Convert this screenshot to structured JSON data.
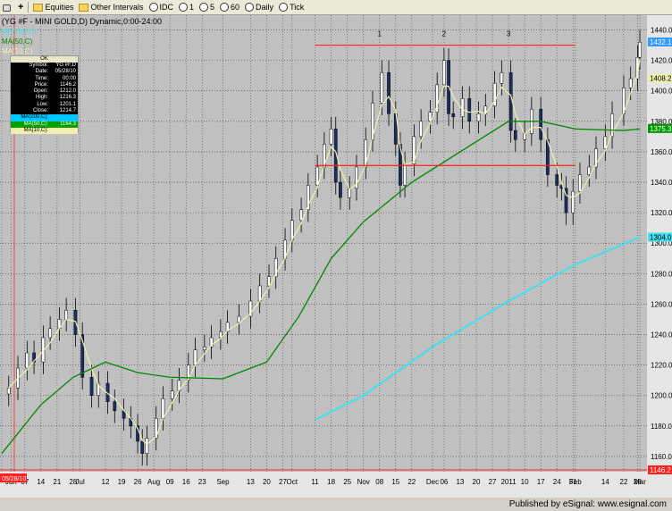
{
  "toolbar": {
    "equities": "Equities",
    "other_intervals": "Other Intervals",
    "idc": "IDC",
    "i1": "1",
    "i5": "5",
    "i60": "60",
    "daily": "Daily",
    "tick": "Tick"
  },
  "footer": {
    "text": "Published by eSignal: www.esignal.com"
  },
  "legend": {
    "header": "OK",
    "rows": [
      {
        "label": "Symbol:",
        "value": "YG #F,D"
      },
      {
        "label": "Date:",
        "value": "05/28/10"
      },
      {
        "label": "Time:",
        "value": "00:00"
      },
      {
        "label": "Price:",
        "value": "1146.2"
      },
      {
        "label": "Open:",
        "value": "1212.0"
      },
      {
        "label": "High:",
        "value": "1216.3"
      },
      {
        "label": "Low:",
        "value": "1201.1"
      },
      {
        "label": "Close:",
        "value": "1214.7"
      },
      {
        "label": "MA(200,C):",
        "value": ""
      },
      {
        "label": "MA(50,C):",
        "value": "1164.3"
      },
      {
        "label": "MA(10,C):",
        "value": ""
      }
    ]
  },
  "colors": {
    "background": "#c0c0c0",
    "candle": "#1a2f60",
    "ma200": "#40e0f0",
    "ma50": "#008800",
    "ma10": "#f0f0b0",
    "resistance": "#ff2020",
    "current_price_badge": "#3399ff"
  },
  "chart_data": {
    "type": "candlestick",
    "title": "(YG #F - MINI GOLD,D) Dynamic,0:00-24:00",
    "series_labels": [
      "MA(200,C)",
      "MA(50,C)",
      "MA(10,C)"
    ],
    "ylim": [
      1150,
      1445
    ],
    "yticks": [
      1160,
      1180,
      1200,
      1220,
      1240,
      1260,
      1280,
      1300,
      1320,
      1340,
      1360,
      1380,
      1400,
      1420,
      1440
    ],
    "xlim": [
      "2010-05-28",
      "2011-03-01"
    ],
    "xticks": [
      {
        "date": "2010-05-28",
        "label": "05/28/10"
      },
      {
        "date": "2010-06-01",
        "label": "Jun"
      },
      {
        "date": "2010-06-07",
        "label": "07"
      },
      {
        "date": "2010-06-14",
        "label": "14"
      },
      {
        "date": "2010-06-21",
        "label": "21"
      },
      {
        "date": "2010-06-28",
        "label": "28"
      },
      {
        "date": "2010-07-01",
        "label": "Jul"
      },
      {
        "date": "2010-07-12",
        "label": "12"
      },
      {
        "date": "2010-07-19",
        "label": "19"
      },
      {
        "date": "2010-07-26",
        "label": "26"
      },
      {
        "date": "2010-08-02",
        "label": "Aug"
      },
      {
        "date": "2010-08-09",
        "label": "09"
      },
      {
        "date": "2010-08-16",
        "label": "16"
      },
      {
        "date": "2010-08-23",
        "label": "23"
      },
      {
        "date": "2010-09-01",
        "label": "Sep"
      },
      {
        "date": "2010-09-13",
        "label": "13"
      },
      {
        "date": "2010-09-20",
        "label": "20"
      },
      {
        "date": "2010-09-27",
        "label": "27"
      },
      {
        "date": "2010-10-01",
        "label": "Oct"
      },
      {
        "date": "2010-10-11",
        "label": "11"
      },
      {
        "date": "2010-10-18",
        "label": "18"
      },
      {
        "date": "2010-10-25",
        "label": "25"
      },
      {
        "date": "2010-11-01",
        "label": "Nov"
      },
      {
        "date": "2010-11-08",
        "label": "08"
      },
      {
        "date": "2010-11-15",
        "label": "15"
      },
      {
        "date": "2010-11-22",
        "label": "22"
      },
      {
        "date": "2010-12-01",
        "label": "Dec"
      },
      {
        "date": "2010-12-06",
        "label": "06"
      },
      {
        "date": "2010-12-13",
        "label": "13"
      },
      {
        "date": "2010-12-20",
        "label": "20"
      },
      {
        "date": "2010-12-27",
        "label": "27"
      },
      {
        "date": "2011-01-03",
        "label": "2011"
      },
      {
        "date": "2011-01-10",
        "label": "10"
      },
      {
        "date": "2011-01-17",
        "label": "17"
      },
      {
        "date": "2011-01-24",
        "label": "24"
      },
      {
        "date": "2011-01-31",
        "label": "31"
      },
      {
        "date": "2011-02-01",
        "label": "Feb"
      },
      {
        "date": "2011-02-14",
        "label": "14"
      },
      {
        "date": "2011-02-22",
        "label": "22"
      },
      {
        "date": "2011-02-28",
        "label": "28"
      },
      {
        "date": "2011-03-01",
        "label": "Mar"
      }
    ],
    "close_series": [
      [
        "2010-05-31",
        1205
      ],
      [
        "2010-06-04",
        1218
      ],
      [
        "2010-06-08",
        1228
      ],
      [
        "2010-06-11",
        1222
      ],
      [
        "2010-06-15",
        1238
      ],
      [
        "2010-06-18",
        1244
      ],
      [
        "2010-06-22",
        1250
      ],
      [
        "2010-06-25",
        1256
      ],
      [
        "2010-06-29",
        1240
      ],
      [
        "2010-07-02",
        1212
      ],
      [
        "2010-07-06",
        1200
      ],
      [
        "2010-07-09",
        1208
      ],
      [
        "2010-07-13",
        1196
      ],
      [
        "2010-07-16",
        1190
      ],
      [
        "2010-07-20",
        1185
      ],
      [
        "2010-07-23",
        1180
      ],
      [
        "2010-07-26",
        1170
      ],
      [
        "2010-07-28",
        1162
      ],
      [
        "2010-07-30",
        1172
      ],
      [
        "2010-08-03",
        1185
      ],
      [
        "2010-08-06",
        1198
      ],
      [
        "2010-08-10",
        1203
      ],
      [
        "2010-08-13",
        1210
      ],
      [
        "2010-08-17",
        1220
      ],
      [
        "2010-08-20",
        1230
      ],
      [
        "2010-08-24",
        1232
      ],
      [
        "2010-08-27",
        1238
      ],
      [
        "2010-08-31",
        1242
      ],
      [
        "2010-09-03",
        1248
      ],
      [
        "2010-09-08",
        1252
      ],
      [
        "2010-09-13",
        1262
      ],
      [
        "2010-09-17",
        1272
      ],
      [
        "2010-09-21",
        1278
      ],
      [
        "2010-09-24",
        1290
      ],
      [
        "2010-09-28",
        1302
      ],
      [
        "2010-10-01",
        1315
      ],
      [
        "2010-10-05",
        1322
      ],
      [
        "2010-10-08",
        1338
      ],
      [
        "2010-10-12",
        1350
      ],
      [
        "2010-10-15",
        1365
      ],
      [
        "2010-10-18",
        1375
      ],
      [
        "2010-10-20",
        1340
      ],
      [
        "2010-10-22",
        1330
      ],
      [
        "2010-10-26",
        1336
      ],
      [
        "2010-10-29",
        1350
      ],
      [
        "2010-11-02",
        1368
      ],
      [
        "2010-11-05",
        1392
      ],
      [
        "2010-11-09",
        1412
      ],
      [
        "2010-11-12",
        1385
      ],
      [
        "2010-11-15",
        1365
      ],
      [
        "2010-11-17",
        1338
      ],
      [
        "2010-11-19",
        1352
      ],
      [
        "2010-11-23",
        1370
      ],
      [
        "2010-11-26",
        1380
      ],
      [
        "2010-11-30",
        1386
      ],
      [
        "2010-12-03",
        1404
      ],
      [
        "2010-12-06",
        1420
      ],
      [
        "2010-12-08",
        1385
      ],
      [
        "2010-12-10",
        1383
      ],
      [
        "2010-12-14",
        1395
      ],
      [
        "2010-12-17",
        1380
      ],
      [
        "2010-12-21",
        1385
      ],
      [
        "2010-12-24",
        1390
      ],
      [
        "2010-12-28",
        1405
      ],
      [
        "2010-12-31",
        1412
      ],
      [
        "2011-01-04",
        1374
      ],
      [
        "2011-01-06",
        1368
      ],
      [
        "2011-01-10",
        1372
      ],
      [
        "2011-01-13",
        1388
      ],
      [
        "2011-01-17",
        1368
      ],
      [
        "2011-01-20",
        1345
      ],
      [
        "2011-01-24",
        1338
      ],
      [
        "2011-01-26",
        1336
      ],
      [
        "2011-01-28",
        1320
      ],
      [
        "2011-01-31",
        1334
      ],
      [
        "2011-02-03",
        1345
      ],
      [
        "2011-02-07",
        1350
      ],
      [
        "2011-02-10",
        1362
      ],
      [
        "2011-02-14",
        1370
      ],
      [
        "2011-02-17",
        1385
      ],
      [
        "2011-02-22",
        1402
      ],
      [
        "2011-02-25",
        1408
      ],
      [
        "2011-02-28",
        1422
      ],
      [
        "2011-03-01",
        1432
      ]
    ],
    "ma200": [
      [
        "2010-10-11",
        1184
      ],
      [
        "2010-11-01",
        1200
      ],
      [
        "2010-12-01",
        1232
      ],
      [
        "2011-01-03",
        1262
      ],
      [
        "2011-02-01",
        1286
      ],
      [
        "2011-03-01",
        1304
      ]
    ],
    "ma50": [
      [
        "2010-05-28",
        1162
      ],
      [
        "2010-06-14",
        1194
      ],
      [
        "2010-06-28",
        1212
      ],
      [
        "2010-07-12",
        1222
      ],
      [
        "2010-07-26",
        1215
      ],
      [
        "2010-08-09",
        1212
      ],
      [
        "2010-09-01",
        1211
      ],
      [
        "2010-09-20",
        1222
      ],
      [
        "2010-10-04",
        1252
      ],
      [
        "2010-10-18",
        1290
      ],
      [
        "2010-11-01",
        1314
      ],
      [
        "2010-11-22",
        1340
      ],
      [
        "2010-12-13",
        1360
      ],
      [
        "2011-01-03",
        1380
      ],
      [
        "2011-01-17",
        1380
      ],
      [
        "2011-02-01",
        1375
      ],
      [
        "2011-02-22",
        1374
      ],
      [
        "2011-03-01",
        1375
      ]
    ],
    "resistance": {
      "y": 1430,
      "x_start": "2010-10-11",
      "x_end": "2011-02-01"
    },
    "support": {
      "y": 1351,
      "x_start": "2010-10-11",
      "x_end": "2011-02-01"
    },
    "annotations": [
      {
        "text": "1",
        "date": "2010-11-08",
        "y": 1436
      },
      {
        "text": "2",
        "date": "2010-12-06",
        "y": 1436
      },
      {
        "text": "3",
        "date": "2011-01-03",
        "y": 1436
      }
    ],
    "axis_badges": [
      {
        "value": 1432.1,
        "label": "1432.1",
        "color": "#3399ff"
      },
      {
        "value": 1408.2,
        "label": "1408.2",
        "color": "#f0f0b0"
      },
      {
        "value": 1375.3,
        "label": "1375.3",
        "color": "#009900"
      },
      {
        "value": 1304.0,
        "label": "1304.0",
        "color": "#40e0f0"
      },
      {
        "value": 1146.2,
        "label": "1146.2",
        "color": "#ff2020"
      }
    ],
    "corner_labels": [
      "MA(200,C)",
      "MA(50,C)",
      "MA(10,C)"
    ]
  }
}
